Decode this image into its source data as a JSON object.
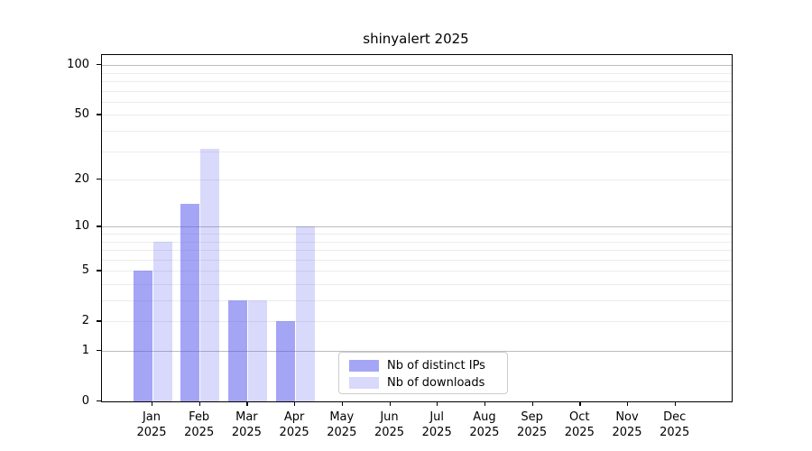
{
  "page": {
    "background_color": "#ffffff"
  },
  "chart_data": {
    "type": "bar",
    "title": "shinyalert 2025",
    "categories": [
      "Jan",
      "Feb",
      "Mar",
      "Apr",
      "May",
      "Jun",
      "Jul",
      "Aug",
      "Sep",
      "Oct",
      "Nov",
      "Dec"
    ],
    "category_year": "2025",
    "series": [
      {
        "name": "Nb of distinct IPs",
        "color": "#5353ee",
        "alpha": 0.52,
        "values": [
          5,
          14,
          3,
          2,
          0,
          0,
          0,
          0,
          0,
          0,
          0,
          0
        ]
      },
      {
        "name": "Nb of downloads",
        "color": "#5353ee",
        "alpha": 0.22,
        "values": [
          8,
          31,
          3,
          10,
          0,
          0,
          0,
          0,
          0,
          0,
          0,
          0
        ]
      }
    ],
    "xlabel": "",
    "ylabel": "",
    "yscale": "log1p",
    "ylim": [
      0,
      115
    ],
    "ytick_values": [
      0,
      1,
      2,
      5,
      10,
      20,
      50,
      100
    ],
    "major_gridlines": [
      1,
      10,
      100
    ],
    "minor_gridlines": [
      2,
      3,
      4,
      5,
      6,
      7,
      8,
      9,
      20,
      30,
      40,
      50,
      60,
      70,
      80,
      90
    ],
    "grid_color_major": "#bdbdbd",
    "grid_color_minor": "#ececec",
    "grid": "on",
    "legend_position": "lower center-left inside plot"
  }
}
